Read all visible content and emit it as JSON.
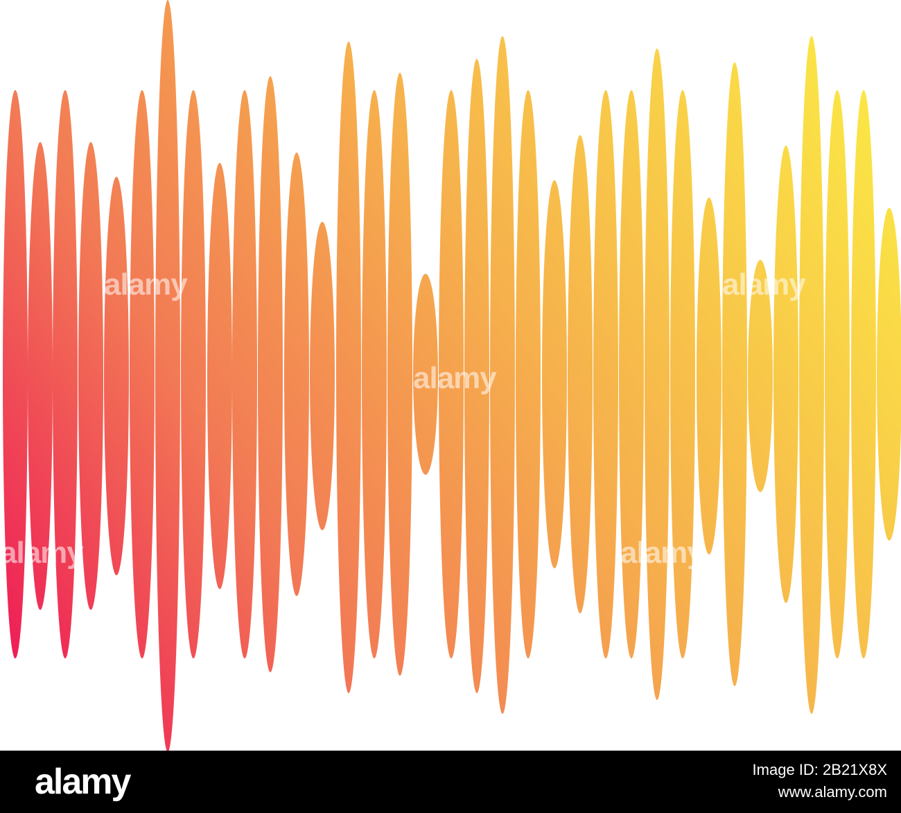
{
  "watermark": "alamy",
  "footer": {
    "logo": "alamy",
    "image_id": "Image ID: 2B21X8X",
    "url": "www.alamy.com"
  }
}
